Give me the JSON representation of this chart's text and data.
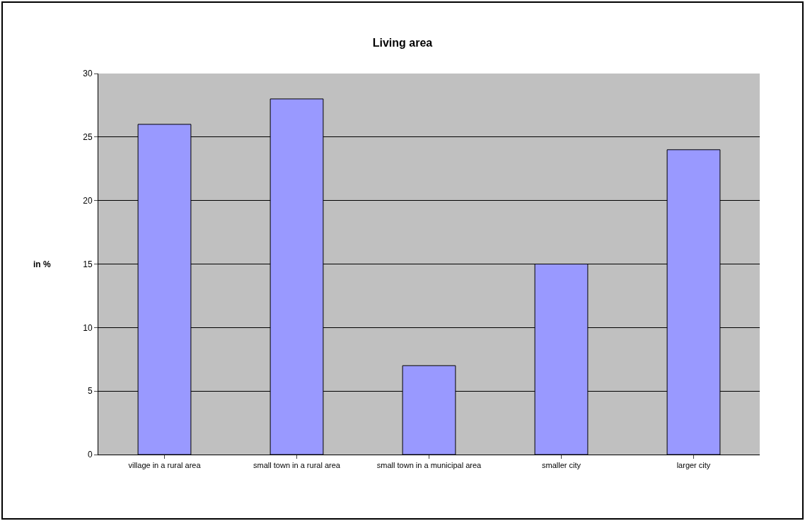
{
  "chart_data": {
    "type": "bar",
    "title": "Living area",
    "ylabel": "in %",
    "categories": [
      "village in a rural area",
      "small town in a rural area",
      "small town in a municipal area",
      "smaller city",
      "larger city"
    ],
    "values": [
      26,
      28,
      7,
      15,
      24
    ],
    "color": "#9999ff",
    "ylim": [
      0,
      30
    ],
    "yticks": [
      0,
      5,
      10,
      15,
      20,
      25,
      30
    ],
    "grid": "y"
  }
}
